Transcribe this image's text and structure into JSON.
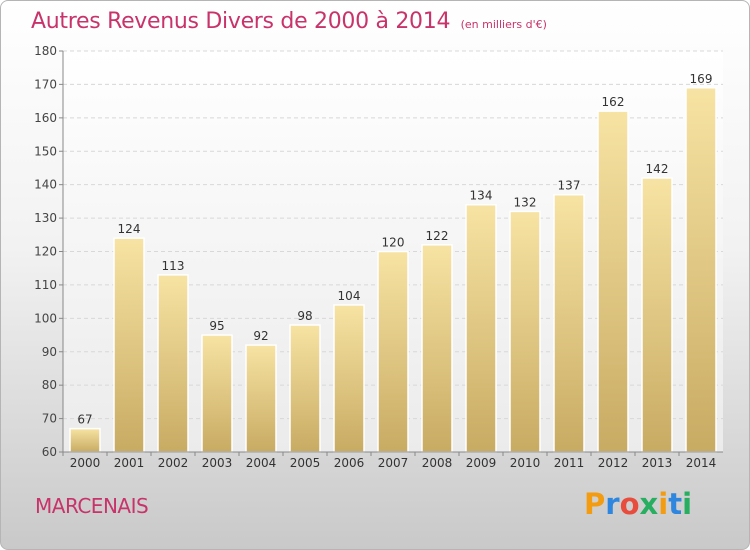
{
  "chart_data": {
    "type": "bar",
    "title": "Autres Revenus Divers de 2000 à 2014",
    "subtitle": "(en milliers d'€)",
    "categories": [
      "2000",
      "2001",
      "2002",
      "2003",
      "2004",
      "2005",
      "2006",
      "2007",
      "2008",
      "2009",
      "2010",
      "2011",
      "2012",
      "2013",
      "2014"
    ],
    "values": [
      67,
      124,
      113,
      95,
      92,
      98,
      104,
      120,
      122,
      134,
      132,
      137,
      162,
      142,
      169
    ],
    "ylim": [
      60,
      180
    ],
    "yticks": [
      60,
      70,
      80,
      90,
      100,
      110,
      120,
      130,
      140,
      150,
      160,
      170,
      180
    ],
    "grid": true,
    "bar_color": "#e8d08c"
  },
  "footer": {
    "city": "MARCENAIS",
    "logo_letters": [
      "P",
      "r",
      "o",
      "x",
      "i",
      "t",
      "i"
    ],
    "logo_colors": [
      "#f39c12",
      "#2e86de",
      "#e74c3c",
      "#27ae60",
      "#f39c12",
      "#2e86de",
      "#27ae60"
    ]
  }
}
